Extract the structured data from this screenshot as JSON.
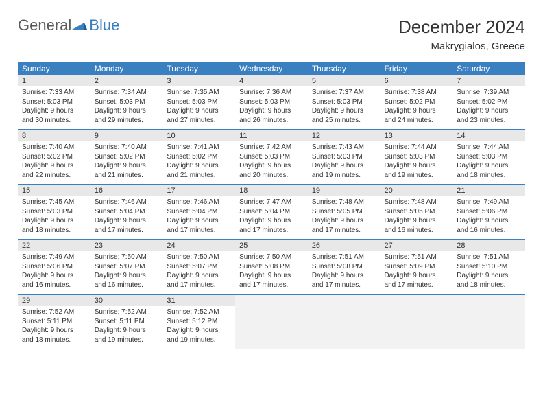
{
  "brand": {
    "part1": "General",
    "part2": "Blue"
  },
  "title": "December 2024",
  "location": "Makrygialos, Greece",
  "colors": {
    "header_bg": "#3a7fbf",
    "header_text": "#ffffff",
    "daynum_bg": "#e8e8e8",
    "empty_bg": "#f2f2f2",
    "text": "#333333",
    "page_bg": "#ffffff"
  },
  "weekday_labels": [
    "Sunday",
    "Monday",
    "Tuesday",
    "Wednesday",
    "Thursday",
    "Friday",
    "Saturday"
  ],
  "weeks": [
    [
      {
        "n": "1",
        "sr": "Sunrise: 7:33 AM",
        "ss": "Sunset: 5:03 PM",
        "d1": "Daylight: 9 hours",
        "d2": "and 30 minutes."
      },
      {
        "n": "2",
        "sr": "Sunrise: 7:34 AM",
        "ss": "Sunset: 5:03 PM",
        "d1": "Daylight: 9 hours",
        "d2": "and 29 minutes."
      },
      {
        "n": "3",
        "sr": "Sunrise: 7:35 AM",
        "ss": "Sunset: 5:03 PM",
        "d1": "Daylight: 9 hours",
        "d2": "and 27 minutes."
      },
      {
        "n": "4",
        "sr": "Sunrise: 7:36 AM",
        "ss": "Sunset: 5:03 PM",
        "d1": "Daylight: 9 hours",
        "d2": "and 26 minutes."
      },
      {
        "n": "5",
        "sr": "Sunrise: 7:37 AM",
        "ss": "Sunset: 5:03 PM",
        "d1": "Daylight: 9 hours",
        "d2": "and 25 minutes."
      },
      {
        "n": "6",
        "sr": "Sunrise: 7:38 AM",
        "ss": "Sunset: 5:02 PM",
        "d1": "Daylight: 9 hours",
        "d2": "and 24 minutes."
      },
      {
        "n": "7",
        "sr": "Sunrise: 7:39 AM",
        "ss": "Sunset: 5:02 PM",
        "d1": "Daylight: 9 hours",
        "d2": "and 23 minutes."
      }
    ],
    [
      {
        "n": "8",
        "sr": "Sunrise: 7:40 AM",
        "ss": "Sunset: 5:02 PM",
        "d1": "Daylight: 9 hours",
        "d2": "and 22 minutes."
      },
      {
        "n": "9",
        "sr": "Sunrise: 7:40 AM",
        "ss": "Sunset: 5:02 PM",
        "d1": "Daylight: 9 hours",
        "d2": "and 21 minutes."
      },
      {
        "n": "10",
        "sr": "Sunrise: 7:41 AM",
        "ss": "Sunset: 5:02 PM",
        "d1": "Daylight: 9 hours",
        "d2": "and 21 minutes."
      },
      {
        "n": "11",
        "sr": "Sunrise: 7:42 AM",
        "ss": "Sunset: 5:03 PM",
        "d1": "Daylight: 9 hours",
        "d2": "and 20 minutes."
      },
      {
        "n": "12",
        "sr": "Sunrise: 7:43 AM",
        "ss": "Sunset: 5:03 PM",
        "d1": "Daylight: 9 hours",
        "d2": "and 19 minutes."
      },
      {
        "n": "13",
        "sr": "Sunrise: 7:44 AM",
        "ss": "Sunset: 5:03 PM",
        "d1": "Daylight: 9 hours",
        "d2": "and 19 minutes."
      },
      {
        "n": "14",
        "sr": "Sunrise: 7:44 AM",
        "ss": "Sunset: 5:03 PM",
        "d1": "Daylight: 9 hours",
        "d2": "and 18 minutes."
      }
    ],
    [
      {
        "n": "15",
        "sr": "Sunrise: 7:45 AM",
        "ss": "Sunset: 5:03 PM",
        "d1": "Daylight: 9 hours",
        "d2": "and 18 minutes."
      },
      {
        "n": "16",
        "sr": "Sunrise: 7:46 AM",
        "ss": "Sunset: 5:04 PM",
        "d1": "Daylight: 9 hours",
        "d2": "and 17 minutes."
      },
      {
        "n": "17",
        "sr": "Sunrise: 7:46 AM",
        "ss": "Sunset: 5:04 PM",
        "d1": "Daylight: 9 hours",
        "d2": "and 17 minutes."
      },
      {
        "n": "18",
        "sr": "Sunrise: 7:47 AM",
        "ss": "Sunset: 5:04 PM",
        "d1": "Daylight: 9 hours",
        "d2": "and 17 minutes."
      },
      {
        "n": "19",
        "sr": "Sunrise: 7:48 AM",
        "ss": "Sunset: 5:05 PM",
        "d1": "Daylight: 9 hours",
        "d2": "and 17 minutes."
      },
      {
        "n": "20",
        "sr": "Sunrise: 7:48 AM",
        "ss": "Sunset: 5:05 PM",
        "d1": "Daylight: 9 hours",
        "d2": "and 16 minutes."
      },
      {
        "n": "21",
        "sr": "Sunrise: 7:49 AM",
        "ss": "Sunset: 5:06 PM",
        "d1": "Daylight: 9 hours",
        "d2": "and 16 minutes."
      }
    ],
    [
      {
        "n": "22",
        "sr": "Sunrise: 7:49 AM",
        "ss": "Sunset: 5:06 PM",
        "d1": "Daylight: 9 hours",
        "d2": "and 16 minutes."
      },
      {
        "n": "23",
        "sr": "Sunrise: 7:50 AM",
        "ss": "Sunset: 5:07 PM",
        "d1": "Daylight: 9 hours",
        "d2": "and 16 minutes."
      },
      {
        "n": "24",
        "sr": "Sunrise: 7:50 AM",
        "ss": "Sunset: 5:07 PM",
        "d1": "Daylight: 9 hours",
        "d2": "and 17 minutes."
      },
      {
        "n": "25",
        "sr": "Sunrise: 7:50 AM",
        "ss": "Sunset: 5:08 PM",
        "d1": "Daylight: 9 hours",
        "d2": "and 17 minutes."
      },
      {
        "n": "26",
        "sr": "Sunrise: 7:51 AM",
        "ss": "Sunset: 5:08 PM",
        "d1": "Daylight: 9 hours",
        "d2": "and 17 minutes."
      },
      {
        "n": "27",
        "sr": "Sunrise: 7:51 AM",
        "ss": "Sunset: 5:09 PM",
        "d1": "Daylight: 9 hours",
        "d2": "and 17 minutes."
      },
      {
        "n": "28",
        "sr": "Sunrise: 7:51 AM",
        "ss": "Sunset: 5:10 PM",
        "d1": "Daylight: 9 hours",
        "d2": "and 18 minutes."
      }
    ],
    [
      {
        "n": "29",
        "sr": "Sunrise: 7:52 AM",
        "ss": "Sunset: 5:11 PM",
        "d1": "Daylight: 9 hours",
        "d2": "and 18 minutes."
      },
      {
        "n": "30",
        "sr": "Sunrise: 7:52 AM",
        "ss": "Sunset: 5:11 PM",
        "d1": "Daylight: 9 hours",
        "d2": "and 19 minutes."
      },
      {
        "n": "31",
        "sr": "Sunrise: 7:52 AM",
        "ss": "Sunset: 5:12 PM",
        "d1": "Daylight: 9 hours",
        "d2": "and 19 minutes."
      },
      null,
      null,
      null,
      null
    ]
  ]
}
